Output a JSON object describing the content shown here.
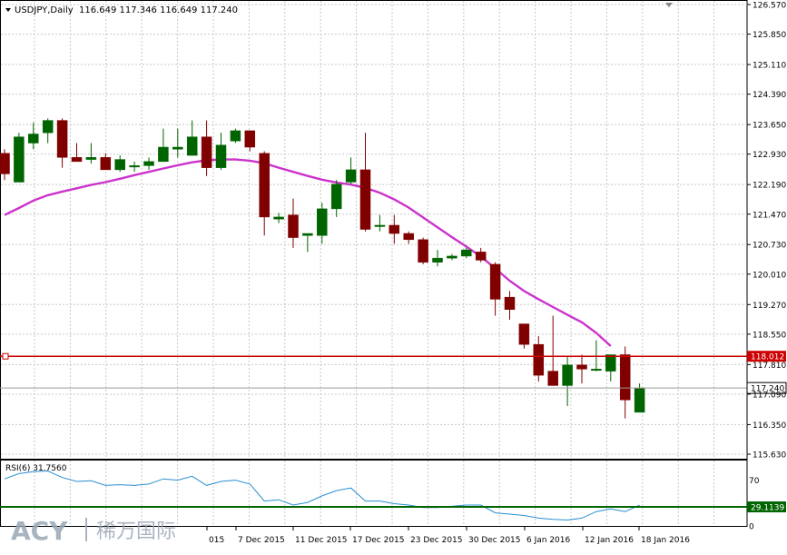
{
  "header": {
    "symbol": "USDJPY,Daily",
    "ohlc": "116.649 117.346 116.649 117.240"
  },
  "colors": {
    "bull": "#006400",
    "bear": "#800000",
    "ma": "#cc33cc",
    "hline": "#cc0000",
    "rsi": "#2a8fd0",
    "rsiLevel": "#006400",
    "grid": "#c8c8c8"
  },
  "chart_data": [
    {
      "type": "candlestick",
      "symbol": "USDJPY",
      "timeframe": "Daily",
      "y_ticks": [
        "126.570",
        "125.850",
        "125.110",
        "124.390",
        "123.650",
        "122.930",
        "122.190",
        "121.470",
        "120.730",
        "120.010",
        "119.270",
        "118.550",
        "117.810",
        "117.090",
        "116.350",
        "115.630"
      ],
      "ylim": [
        115.63,
        126.57
      ],
      "x_labels": [
        "015",
        "7 Dec 2015",
        "11 Dec 2015",
        "17 Dec 2015",
        "23 Dec 2015",
        "30 Dec 2015",
        "6 Jan 2016",
        "12 Jan 2016",
        "18 Jan 2016"
      ],
      "candles": [
        {
          "o": 122.95,
          "h": 123.05,
          "l": 122.3,
          "c": 122.45
        },
        {
          "o": 122.25,
          "h": 123.45,
          "l": 122.25,
          "c": 123.35
        },
        {
          "o": 123.2,
          "h": 123.7,
          "l": 123.05,
          "c": 123.42
        },
        {
          "o": 123.45,
          "h": 123.8,
          "l": 123.2,
          "c": 123.75
        },
        {
          "o": 123.75,
          "h": 123.8,
          "l": 122.6,
          "c": 122.85
        },
        {
          "o": 122.85,
          "h": 123.2,
          "l": 122.75,
          "c": 122.75
        },
        {
          "o": 122.8,
          "h": 123.2,
          "l": 122.7,
          "c": 122.85
        },
        {
          "o": 122.85,
          "h": 122.95,
          "l": 122.55,
          "c": 122.55
        },
        {
          "o": 122.55,
          "h": 122.9,
          "l": 122.5,
          "c": 122.8
        },
        {
          "o": 122.65,
          "h": 122.75,
          "l": 122.5,
          "c": 122.65
        },
        {
          "o": 122.65,
          "h": 122.85,
          "l": 122.55,
          "c": 122.75
        },
        {
          "o": 122.75,
          "h": 123.55,
          "l": 122.75,
          "c": 123.1
        },
        {
          "o": 123.05,
          "h": 123.55,
          "l": 122.85,
          "c": 123.1
        },
        {
          "o": 122.9,
          "h": 123.75,
          "l": 122.9,
          "c": 123.35
        },
        {
          "o": 123.35,
          "h": 123.75,
          "l": 122.4,
          "c": 122.6
        },
        {
          "o": 122.6,
          "h": 123.45,
          "l": 122.55,
          "c": 123.15
        },
        {
          "o": 123.25,
          "h": 123.55,
          "l": 123.2,
          "c": 123.5
        },
        {
          "o": 123.5,
          "h": 123.5,
          "l": 123.0,
          "c": 123.1
        },
        {
          "o": 122.95,
          "h": 123.0,
          "l": 120.95,
          "c": 121.4
        },
        {
          "o": 121.35,
          "h": 121.5,
          "l": 121.25,
          "c": 121.4
        },
        {
          "o": 121.45,
          "h": 121.85,
          "l": 120.65,
          "c": 120.9
        },
        {
          "o": 120.95,
          "h": 121.0,
          "l": 120.55,
          "c": 121.0
        },
        {
          "o": 120.95,
          "h": 121.75,
          "l": 120.75,
          "c": 121.6
        },
        {
          "o": 121.6,
          "h": 122.3,
          "l": 121.4,
          "c": 122.2
        },
        {
          "o": 122.25,
          "h": 122.85,
          "l": 122.2,
          "c": 122.55
        },
        {
          "o": 122.55,
          "h": 123.45,
          "l": 121.05,
          "c": 121.1
        },
        {
          "o": 121.2,
          "h": 121.45,
          "l": 121.05,
          "c": 121.2
        },
        {
          "o": 121.2,
          "h": 121.45,
          "l": 120.75,
          "c": 121.0
        },
        {
          "o": 121.0,
          "h": 121.05,
          "l": 120.75,
          "c": 120.85
        },
        {
          "o": 120.85,
          "h": 120.9,
          "l": 120.25,
          "c": 120.3
        },
        {
          "o": 120.3,
          "h": 120.6,
          "l": 120.2,
          "c": 120.4
        },
        {
          "o": 120.4,
          "h": 120.5,
          "l": 120.35,
          "c": 120.45
        },
        {
          "o": 120.45,
          "h": 120.65,
          "l": 120.4,
          "c": 120.6
        },
        {
          "o": 120.55,
          "h": 120.65,
          "l": 120.3,
          "c": 120.35
        },
        {
          "o": 120.25,
          "h": 120.3,
          "l": 119.0,
          "c": 119.4
        },
        {
          "o": 119.45,
          "h": 119.6,
          "l": 118.9,
          "c": 119.15
        },
        {
          "o": 118.8,
          "h": 118.8,
          "l": 118.2,
          "c": 118.3
        },
        {
          "o": 118.3,
          "h": 118.5,
          "l": 117.4,
          "c": 117.55
        },
        {
          "o": 117.65,
          "h": 119.0,
          "l": 117.3,
          "c": 117.3
        },
        {
          "o": 117.3,
          "h": 118.0,
          "l": 116.8,
          "c": 117.8
        },
        {
          "o": 117.8,
          "h": 118.05,
          "l": 117.35,
          "c": 117.7
        },
        {
          "o": 117.7,
          "h": 118.4,
          "l": 117.65,
          "c": 117.7
        },
        {
          "o": 117.65,
          "h": 118.05,
          "l": 117.4,
          "c": 118.05
        },
        {
          "o": 118.05,
          "h": 118.25,
          "l": 116.5,
          "c": 116.95
        },
        {
          "o": 116.65,
          "h": 117.35,
          "l": 116.65,
          "c": 117.24
        }
      ],
      "ma": [
        121.45,
        121.62,
        121.8,
        121.93,
        122.02,
        122.1,
        122.18,
        122.25,
        122.33,
        122.42,
        122.5,
        122.58,
        122.66,
        122.73,
        122.78,
        122.8,
        122.8,
        122.77,
        122.71,
        122.6,
        122.5,
        122.4,
        122.31,
        122.24,
        122.19,
        122.11,
        121.99,
        121.83,
        121.63,
        121.39,
        121.15,
        120.91,
        120.68,
        120.44,
        120.15,
        119.85,
        119.6,
        119.4,
        119.21,
        119.02,
        118.84,
        118.58,
        118.26
      ],
      "ma_start_index": 0,
      "hline": 118.012,
      "hline_label": "118.012",
      "price_label": "117.240"
    },
    {
      "type": "line",
      "title": "RSI(6) 31.7560",
      "y_ticks": [
        "70",
        "30",
        "0"
      ],
      "ylim": [
        0,
        100
      ],
      "values": [
        72,
        80,
        83,
        84,
        74,
        68,
        69,
        62,
        63,
        62,
        64,
        72,
        70,
        76,
        62,
        68,
        70,
        64,
        38,
        40,
        32,
        36,
        46,
        54,
        58,
        38,
        38,
        34,
        32,
        28,
        28,
        30,
        32,
        32,
        20,
        18,
        16,
        12,
        10,
        9,
        12,
        22,
        26,
        22,
        31.756
      ],
      "level": 29.1139,
      "level_label": "29.1139"
    }
  ],
  "watermark": {
    "logo": "ACY",
    "text": "稀万国际"
  }
}
